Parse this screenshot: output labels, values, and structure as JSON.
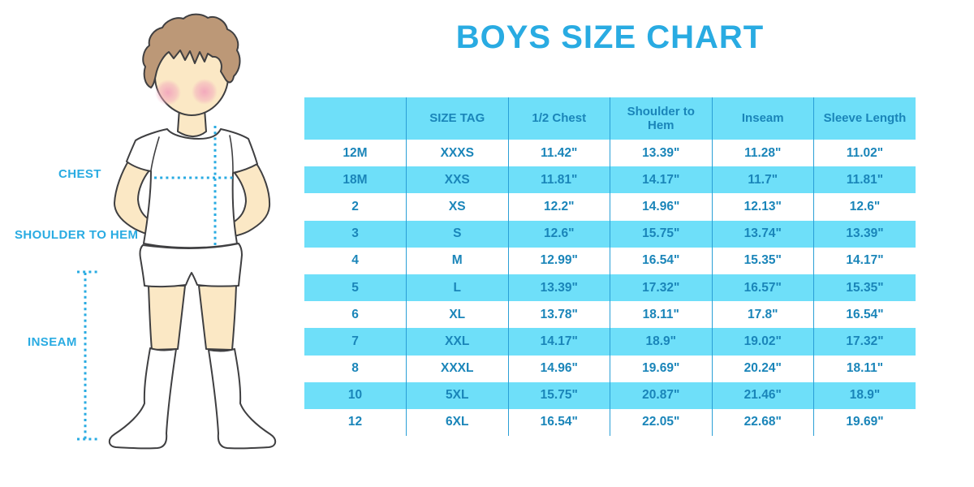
{
  "title": "BOYS SIZE CHART",
  "diagram": {
    "labels": {
      "chest": "CHEST",
      "shoulder_to_hem": "SHOULDER TO HEM",
      "inseam": "INSEAM"
    }
  },
  "colors": {
    "accent_blue": "#29ABE2",
    "row_stripe": "#6EDFF9",
    "table_text": "#1A85B9",
    "grid_line": "#2A9FD6",
    "skin": "#FBE8C5",
    "hair": "#BC9877",
    "blush": "#F2A6BC"
  },
  "table": {
    "headers": [
      "",
      "SIZE TAG",
      "1/2 Chest",
      "Shoulder to Hem",
      "Inseam",
      "Sleeve Length"
    ],
    "rows": [
      [
        "12M",
        "XXXS",
        "11.42\"",
        "13.39\"",
        "11.28\"",
        "11.02\""
      ],
      [
        "18M",
        "XXS",
        "11.81\"",
        "14.17\"",
        "11.7\"",
        "11.81\""
      ],
      [
        "2",
        "XS",
        "12.2\"",
        "14.96\"",
        "12.13\"",
        "12.6\""
      ],
      [
        "3",
        "S",
        "12.6\"",
        "15.75\"",
        "13.74\"",
        "13.39\""
      ],
      [
        "4",
        "M",
        "12.99\"",
        "16.54\"",
        "15.35\"",
        "14.17\""
      ],
      [
        "5",
        "L",
        "13.39\"",
        "17.32\"",
        "16.57\"",
        "15.35\""
      ],
      [
        "6",
        "XL",
        "13.78\"",
        "18.11\"",
        "17.8\"",
        "16.54\""
      ],
      [
        "7",
        "XXL",
        "14.17\"",
        "18.9\"",
        "19.02\"",
        "17.32\""
      ],
      [
        "8",
        "XXXL",
        "14.96\"",
        "19.69\"",
        "20.24\"",
        "18.11\""
      ],
      [
        "10",
        "5XL",
        "15.75\"",
        "20.87\"",
        "21.46\"",
        "18.9\""
      ],
      [
        "12",
        "6XL",
        "16.54\"",
        "22.05\"",
        "22.68\"",
        "19.69\""
      ]
    ]
  }
}
